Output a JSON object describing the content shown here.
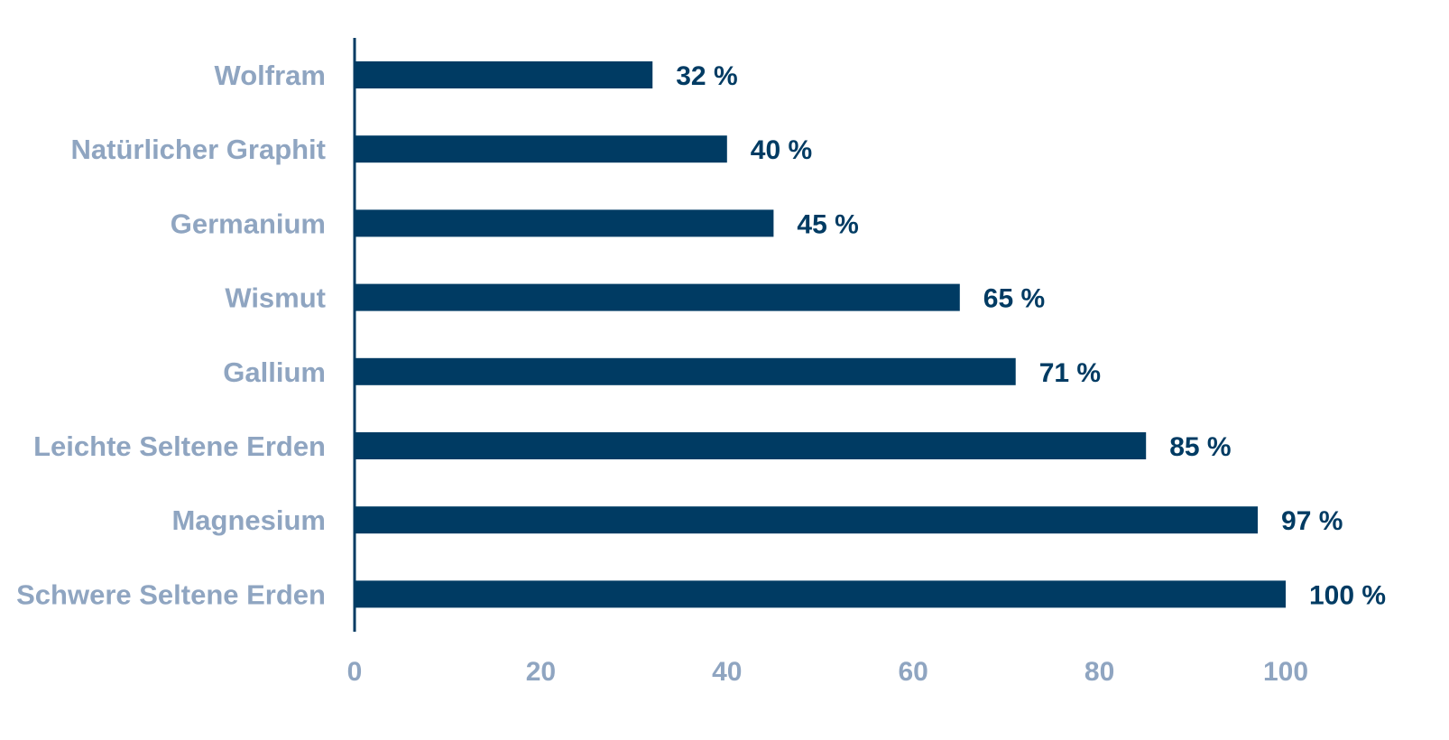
{
  "chart_data": {
    "type": "bar",
    "orientation": "horizontal",
    "categories": [
      "Wolfram",
      "Natürlicher Graphit",
      "Germanium",
      "Wismut",
      "Gallium",
      "Leichte Seltene Erden",
      "Magnesium",
      "Schwere Seltene Erden"
    ],
    "values": [
      32,
      40,
      45,
      65,
      71,
      85,
      97,
      100
    ],
    "value_labels": [
      "32 %",
      "40 %",
      "45 %",
      "65 %",
      "71 %",
      "85 %",
      "97 %",
      "100 %"
    ],
    "x_ticks": [
      "0",
      "20",
      "40",
      "60",
      "80",
      "100"
    ],
    "xlim": [
      0,
      100
    ],
    "grid": false,
    "colors": {
      "bar": "#003b63",
      "category_label": "#8fa5c1",
      "value_label": "#003b63",
      "axis": "#003b63",
      "tick_label": "#8fa5c1"
    }
  }
}
